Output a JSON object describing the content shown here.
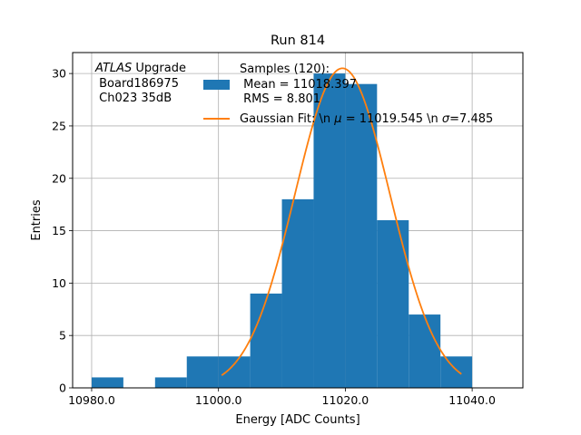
{
  "chart_data": {
    "type": "bar",
    "title": "Run 814",
    "xlabel": "Energy [ADC Counts]",
    "ylabel": "Entries",
    "xlim": [
      10977,
      11048
    ],
    "ylim": [
      0,
      32
    ],
    "x_ticks": [
      10980,
      11000,
      11020,
      11040
    ],
    "x_tick_labels": [
      "10980.0",
      "11000.0",
      "11020.0",
      "11040.0"
    ],
    "y_ticks": [
      0,
      5,
      10,
      15,
      20,
      25,
      30
    ],
    "y_tick_labels": [
      "0",
      "5",
      "10",
      "15",
      "20",
      "25",
      "30"
    ],
    "grid": true,
    "histogram": {
      "bin_edges": [
        10980,
        10985,
        10990,
        10995,
        11000,
        11005,
        11010,
        11015,
        11020,
        11025,
        11030,
        11035,
        11040
      ],
      "counts": [
        1,
        0,
        1,
        3,
        3,
        9,
        18,
        30,
        29,
        16,
        7,
        3
      ],
      "color": "#1f77b4"
    },
    "fit_curve": {
      "mu": 11019.545,
      "sigma": 7.485,
      "amplitude": 30.5,
      "x_range": [
        11000.5,
        11038.3
      ],
      "color": "#ff7f0e"
    },
    "annotation": {
      "line1_italic": "ATLAS",
      "line1_rest": " Upgrade",
      "line2": " Board186975",
      "line3": " Ch023 35dB"
    },
    "legend": {
      "placement": "top-right",
      "samples_title": "Samples (120):",
      "samples_mean": " Mean = 11018.397",
      "samples_rms": " RMS = 8.801",
      "fit_label_prefix": "Gaussian Fit: \\n ",
      "fit_mu_symbol": "μ",
      "fit_mu_text": " = 11019.545 \\n ",
      "fit_sigma_symbol": "σ",
      "fit_sigma_text": "=7.485"
    }
  }
}
